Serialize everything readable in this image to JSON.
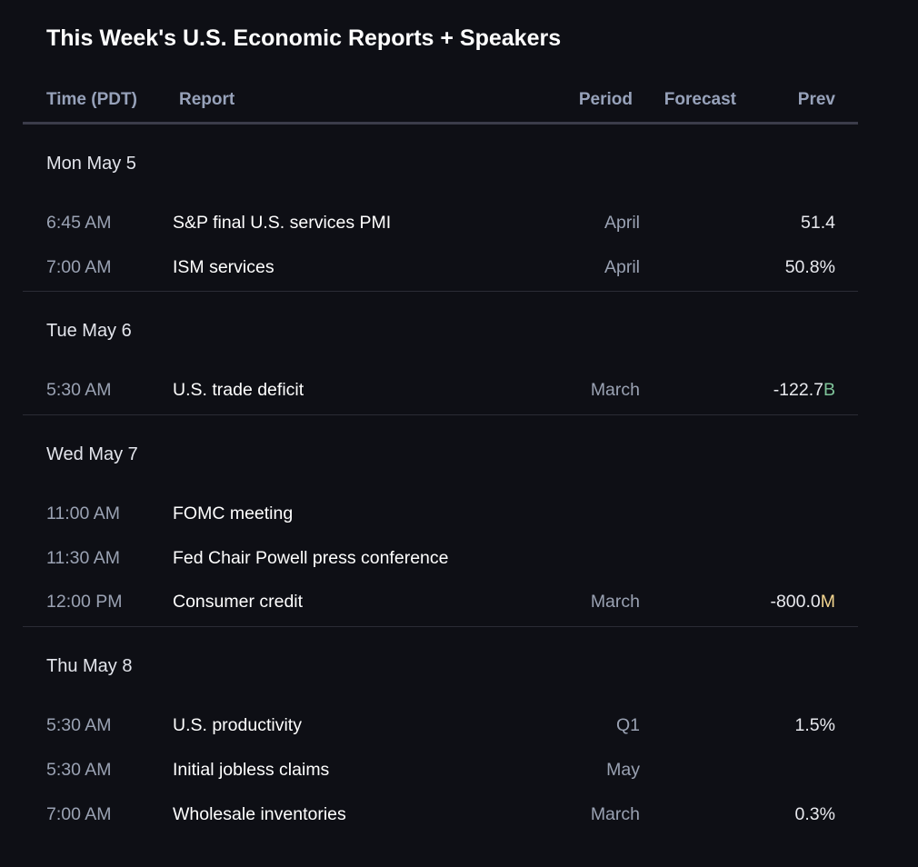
{
  "title": "This Week's U.S. Economic Reports + Speakers",
  "columns": {
    "time": "Time (PDT)",
    "report": "Report",
    "period": "Period",
    "forecast": "Forecast",
    "prev": "Prev"
  },
  "colors": {
    "background": "#0e0f15",
    "header_text": "#97a2ba",
    "billions_suffix": "#7fc49a",
    "millions_suffix": "#f3d58f"
  },
  "days": [
    {
      "label": "Mon May 5",
      "rows": [
        {
          "time": "6:45 AM",
          "report": "S&P final U.S. services PMI",
          "period": "April",
          "forecast": "",
          "prev": "51.4",
          "prev_suffix": ""
        },
        {
          "time": "7:00 AM",
          "report": "ISM services",
          "period": "April",
          "forecast": "",
          "prev": "50.8%",
          "prev_suffix": ""
        }
      ]
    },
    {
      "label": "Tue May 6",
      "rows": [
        {
          "time": "5:30 AM",
          "report": "U.S. trade deficit",
          "period": "March",
          "forecast": "",
          "prev": "-122.7",
          "prev_suffix": "B",
          "suffix_color": "#7fc49a"
        }
      ]
    },
    {
      "label": "Wed May 7",
      "rows": [
        {
          "time": "11:00 AM",
          "report": "FOMC meeting",
          "period": "",
          "forecast": "",
          "prev": "",
          "prev_suffix": ""
        },
        {
          "time": "11:30 AM",
          "report": "Fed Chair Powell press conference",
          "period": "",
          "forecast": "",
          "prev": "",
          "prev_suffix": ""
        },
        {
          "time": "12:00 PM",
          "report": "Consumer credit",
          "period": "March",
          "forecast": "",
          "prev": "-800.0",
          "prev_suffix": "M",
          "suffix_color": "#f3d58f"
        }
      ]
    },
    {
      "label": "Thu May 8",
      "rows": [
        {
          "time": "5:30 AM",
          "report": "U.S. productivity",
          "period": "Q1",
          "forecast": "",
          "prev": "1.5%",
          "prev_suffix": ""
        },
        {
          "time": "5:30 AM",
          "report": "Initial jobless claims",
          "period": "May",
          "forecast": "",
          "prev": "",
          "prev_suffix": ""
        },
        {
          "time": "7:00 AM",
          "report": "Wholesale inventories",
          "period": "March",
          "forecast": "",
          "prev": "0.3%",
          "prev_suffix": ""
        }
      ]
    }
  ]
}
